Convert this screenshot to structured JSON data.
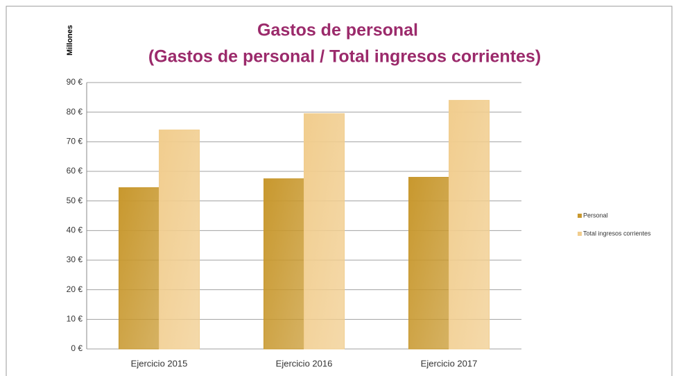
{
  "chart_data": {
    "type": "bar",
    "title": "Gastos de personal",
    "subtitle": "(Gastos de personal / Total ingresos corrientes)",
    "y_label": "Millones",
    "categories": [
      "Ejercicio 2015",
      "Ejercicio 2016",
      "Ejercicio 2017"
    ],
    "series": [
      {
        "name": "Personal",
        "color": "#c8982e",
        "values": [
          54.5,
          57.5,
          58
        ]
      },
      {
        "name": "Total ingresos corrientes",
        "color": "#f1cd8e",
        "values": [
          74,
          79.5,
          84
        ]
      }
    ],
    "ylim": [
      0,
      90
    ],
    "yticks": [
      {
        "value": 0,
        "label": "0 €"
      },
      {
        "value": 10,
        "label": "10 €"
      },
      {
        "value": 20,
        "label": "20 €"
      },
      {
        "value": 30,
        "label": "30 €"
      },
      {
        "value": 40,
        "label": "40 €"
      },
      {
        "value": 50,
        "label": "50 €"
      },
      {
        "value": 60,
        "label": "60 €"
      },
      {
        "value": 70,
        "label": "70 €"
      },
      {
        "value": 80,
        "label": "80 €"
      },
      {
        "value": 90,
        "label": "90 €"
      }
    ],
    "grid": true,
    "legend": "right"
  }
}
